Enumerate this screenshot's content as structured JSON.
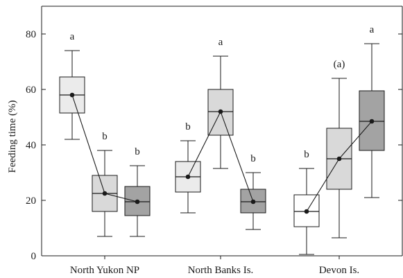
{
  "chart_data": {
    "type": "boxplot",
    "ylabel": "Feeding time (%)",
    "ylim": [
      0,
      90
    ],
    "yticks": [
      0,
      20,
      40,
      60,
      80
    ],
    "groups": [
      {
        "label": "North Yukon NP",
        "boxes": [
          {
            "min": 42,
            "q1": 51.5,
            "median": 58,
            "q3": 64.5,
            "max": 74,
            "mean": 58,
            "shade": "#ebebeb",
            "letter": "a"
          },
          {
            "min": 7,
            "q1": 16,
            "median": 22.5,
            "q3": 29,
            "max": 38,
            "mean": 22.5,
            "shade": "#d9d9d9",
            "letter": "b"
          },
          {
            "min": 7,
            "q1": 14.5,
            "median": 19.5,
            "q3": 25,
            "max": 32.5,
            "mean": 19.5,
            "shade": "#a3a3a3",
            "letter": "b"
          }
        ]
      },
      {
        "label": "North Banks Is.",
        "boxes": [
          {
            "min": 15.5,
            "q1": 23,
            "median": 28.5,
            "q3": 34,
            "max": 41.5,
            "mean": 28.5,
            "shade": "#ebebeb",
            "letter": "b"
          },
          {
            "min": 31.5,
            "q1": 43.5,
            "median": 52,
            "q3": 60,
            "max": 72,
            "mean": 52,
            "shade": "#d9d9d9",
            "letter": "a"
          },
          {
            "min": 9.5,
            "q1": 15.5,
            "median": 19.5,
            "q3": 24,
            "max": 30,
            "mean": 19.5,
            "shade": "#a3a3a3",
            "letter": "b"
          }
        ]
      },
      {
        "label": "Devon Is.",
        "boxes": [
          {
            "min": 0.5,
            "q1": 10.5,
            "median": 16,
            "q3": 22,
            "max": 31.5,
            "mean": 16,
            "shade": "#ffffff",
            "letter": "b"
          },
          {
            "min": 6.5,
            "q1": 24,
            "median": 35,
            "q3": 46,
            "max": 64,
            "mean": 35,
            "shade": "#d9d9d9",
            "letter": "(a)"
          },
          {
            "min": 21,
            "q1": 38,
            "median": 48.5,
            "q3": 59.5,
            "max": 76.5,
            "mean": 48.5,
            "shade": "#a3a3a3",
            "letter": "a"
          }
        ]
      }
    ]
  }
}
